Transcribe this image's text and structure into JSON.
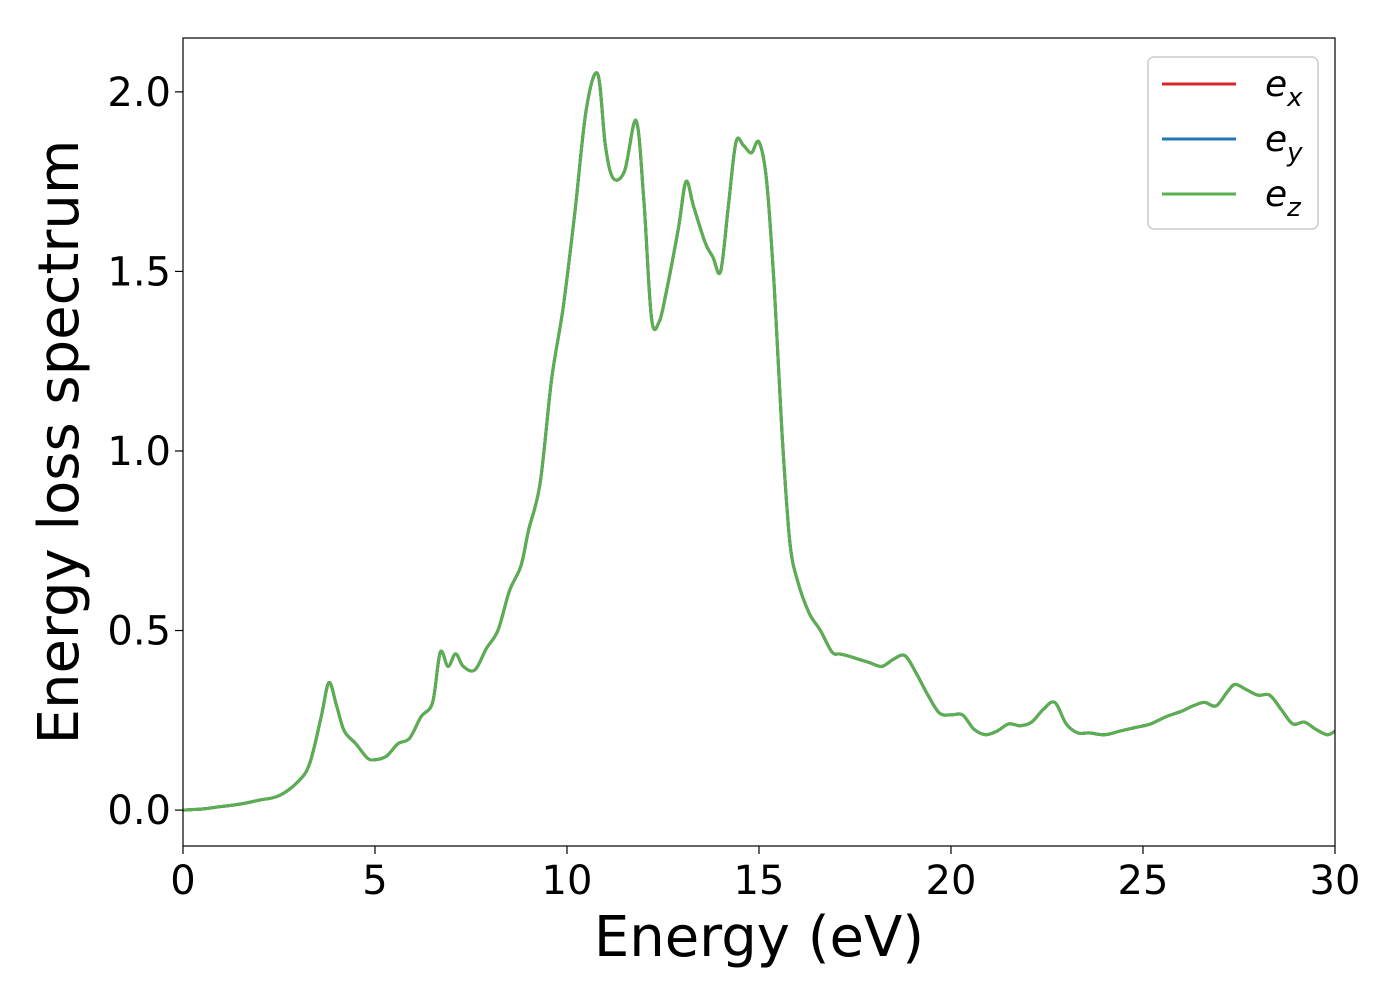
{
  "chart_data": {
    "type": "line",
    "xlabel": "Energy (eV)",
    "ylabel": "Energy loss spectrum",
    "xlim": [
      0,
      30
    ],
    "ylim": [
      -0.1,
      2.15
    ],
    "xticks": [
      0,
      5,
      10,
      15,
      20,
      25,
      30
    ],
    "xtick_labels": [
      "0",
      "5",
      "10",
      "15",
      "20",
      "25",
      "30"
    ],
    "yticks": [
      0.0,
      0.5,
      1.0,
      1.5,
      2.0
    ],
    "ytick_labels": [
      "0.0",
      "0.5",
      "1.0",
      "1.5",
      "2.0"
    ],
    "grid": false,
    "legend_position": "top-right",
    "x": [
      0,
      0.5,
      1,
      1.5,
      2,
      2.5,
      3,
      3.3,
      3.6,
      3.8,
      4.0,
      4.2,
      4.5,
      4.8,
      5.0,
      5.3,
      5.6,
      5.9,
      6.2,
      6.5,
      6.7,
      6.9,
      7.1,
      7.3,
      7.6,
      7.9,
      8.2,
      8.5,
      8.8,
      9.0,
      9.3,
      9.6,
      9.9,
      10.2,
      10.5,
      10.8,
      11.0,
      11.2,
      11.5,
      11.8,
      12.0,
      12.2,
      12.4,
      12.6,
      12.9,
      13.1,
      13.3,
      13.6,
      13.8,
      14.0,
      14.2,
      14.4,
      14.6,
      14.8,
      15.0,
      15.2,
      15.4,
      15.6,
      15.8,
      16.0,
      16.3,
      16.6,
      16.9,
      17.1,
      17.3,
      17.6,
      17.9,
      18.2,
      18.5,
      18.8,
      19.1,
      19.4,
      19.7,
      20.0,
      20.3,
      20.6,
      20.9,
      21.2,
      21.5,
      21.8,
      22.1,
      22.4,
      22.7,
      23.0,
      23.3,
      23.6,
      24.0,
      24.4,
      24.8,
      25.2,
      25.6,
      26.0,
      26.3,
      26.6,
      26.9,
      27.2,
      27.4,
      27.7,
      28.0,
      28.3,
      28.6,
      28.9,
      29.2,
      29.5,
      29.8,
      30.0
    ],
    "series": [
      {
        "name": "e_x",
        "label_base": "e",
        "label_sub": "x",
        "color": "#d62728",
        "y": [
          0.0,
          0.003,
          0.01,
          0.017,
          0.028,
          0.04,
          0.08,
          0.13,
          0.26,
          0.355,
          0.29,
          0.22,
          0.185,
          0.145,
          0.14,
          0.15,
          0.185,
          0.2,
          0.26,
          0.3,
          0.44,
          0.4,
          0.435,
          0.4,
          0.39,
          0.45,
          0.5,
          0.61,
          0.68,
          0.78,
          0.91,
          1.2,
          1.4,
          1.66,
          1.95,
          2.05,
          1.85,
          1.76,
          1.78,
          1.92,
          1.7,
          1.37,
          1.36,
          1.45,
          1.62,
          1.75,
          1.68,
          1.58,
          1.54,
          1.5,
          1.68,
          1.86,
          1.85,
          1.83,
          1.86,
          1.75,
          1.45,
          1.05,
          0.75,
          0.64,
          0.55,
          0.5,
          0.44,
          0.435,
          0.43,
          0.42,
          0.41,
          0.4,
          0.42,
          0.43,
          0.38,
          0.32,
          0.27,
          0.265,
          0.265,
          0.225,
          0.21,
          0.22,
          0.24,
          0.235,
          0.245,
          0.28,
          0.3,
          0.24,
          0.215,
          0.215,
          0.21,
          0.22,
          0.23,
          0.24,
          0.26,
          0.275,
          0.29,
          0.3,
          0.29,
          0.33,
          0.35,
          0.335,
          0.32,
          0.32,
          0.28,
          0.24,
          0.245,
          0.225,
          0.21,
          0.22
        ]
      },
      {
        "name": "e_y",
        "label_base": "e",
        "label_sub": "y",
        "color": "#1f77b4",
        "y": [
          0.0,
          0.003,
          0.01,
          0.017,
          0.028,
          0.04,
          0.08,
          0.13,
          0.26,
          0.355,
          0.29,
          0.22,
          0.185,
          0.145,
          0.14,
          0.15,
          0.185,
          0.2,
          0.26,
          0.3,
          0.44,
          0.4,
          0.435,
          0.4,
          0.39,
          0.45,
          0.5,
          0.61,
          0.68,
          0.78,
          0.91,
          1.2,
          1.4,
          1.66,
          1.95,
          2.05,
          1.85,
          1.76,
          1.78,
          1.92,
          1.7,
          1.37,
          1.36,
          1.45,
          1.62,
          1.75,
          1.68,
          1.58,
          1.54,
          1.5,
          1.68,
          1.86,
          1.85,
          1.83,
          1.86,
          1.75,
          1.45,
          1.05,
          0.75,
          0.64,
          0.55,
          0.5,
          0.44,
          0.435,
          0.43,
          0.42,
          0.41,
          0.4,
          0.42,
          0.43,
          0.38,
          0.32,
          0.27,
          0.265,
          0.265,
          0.225,
          0.21,
          0.22,
          0.24,
          0.235,
          0.245,
          0.28,
          0.3,
          0.24,
          0.215,
          0.215,
          0.21,
          0.22,
          0.23,
          0.24,
          0.26,
          0.275,
          0.29,
          0.3,
          0.29,
          0.33,
          0.35,
          0.335,
          0.32,
          0.32,
          0.28,
          0.24,
          0.245,
          0.225,
          0.21,
          0.22
        ]
      },
      {
        "name": "e_z",
        "label_base": "e",
        "label_sub": "z",
        "color": "#5aaf4f",
        "y": [
          0.0,
          0.003,
          0.01,
          0.017,
          0.028,
          0.04,
          0.08,
          0.13,
          0.26,
          0.355,
          0.29,
          0.22,
          0.185,
          0.145,
          0.14,
          0.15,
          0.185,
          0.2,
          0.26,
          0.3,
          0.44,
          0.4,
          0.435,
          0.4,
          0.39,
          0.45,
          0.5,
          0.61,
          0.68,
          0.78,
          0.91,
          1.2,
          1.4,
          1.66,
          1.95,
          2.05,
          1.85,
          1.76,
          1.78,
          1.92,
          1.7,
          1.37,
          1.36,
          1.45,
          1.62,
          1.75,
          1.68,
          1.58,
          1.54,
          1.5,
          1.68,
          1.86,
          1.85,
          1.83,
          1.86,
          1.75,
          1.45,
          1.05,
          0.75,
          0.64,
          0.55,
          0.5,
          0.44,
          0.435,
          0.43,
          0.42,
          0.41,
          0.4,
          0.42,
          0.43,
          0.38,
          0.32,
          0.27,
          0.265,
          0.265,
          0.225,
          0.21,
          0.22,
          0.24,
          0.235,
          0.245,
          0.28,
          0.3,
          0.24,
          0.215,
          0.215,
          0.21,
          0.22,
          0.23,
          0.24,
          0.26,
          0.275,
          0.29,
          0.3,
          0.29,
          0.33,
          0.35,
          0.335,
          0.32,
          0.32,
          0.28,
          0.24,
          0.245,
          0.225,
          0.21,
          0.22
        ]
      }
    ]
  }
}
